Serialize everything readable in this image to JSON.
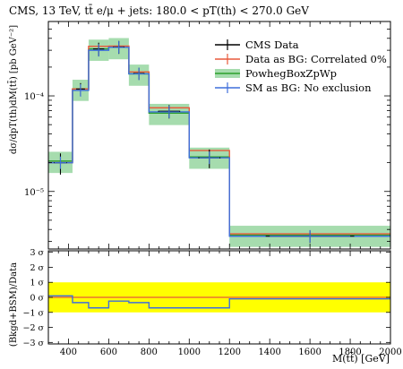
{
  "chart_data": [
    {
      "type": "line",
      "title": "CMS, 13 TeV, tt̄ e/μ + jets: 180.0 < pT(th) < 270.0 GeV",
      "ylabel": "dσ/dpT(th)dM(tt̄) [pb GeV⁻²]",
      "yscale": "log",
      "ylim": [
        2.5e-06,
        0.0006
      ],
      "xlim": [
        300,
        2000
      ],
      "yticks": [
        {
          "value": 1e-05,
          "label": "10⁻⁵"
        },
        {
          "value": 0.0001,
          "label": "10⁻⁴"
        }
      ],
      "bin_edges": [
        300,
        420,
        500,
        600,
        700,
        800,
        1000,
        1200,
        2000
      ],
      "legend": {
        "position": "top-right"
      },
      "series": [
        {
          "name": "CMS Data",
          "color": "#000000",
          "x": [
            360,
            460,
            550,
            650,
            750,
            900,
            1100,
            1600
          ],
          "y": [
            2e-05,
            0.000118,
            0.00031,
            0.000325,
            0.000172,
            6.9e-05,
            2.25e-05,
            3.4e-06
          ],
          "yerr": [
            5e-06,
            1.8e-05,
            5e-05,
            5e-05,
            2.5e-05,
            1.1e-05,
            5e-06,
            5e-07
          ]
        },
        {
          "name": "Data as BG: Correlated 0%",
          "color": "#e8593b",
          "y": [
            2e-05,
            0.000118,
            0.00033,
            0.000332,
            0.000178,
            7.5e-05,
            2.68e-05,
            3.6e-06
          ]
        },
        {
          "name": "PowhegBoxZpWp",
          "color": "#2ca02c",
          "band_color": "#a6dcae",
          "y": [
            2.08e-05,
            0.000118,
            0.00031,
            0.000322,
            0.00017,
            6.6e-05,
            2.3e-05,
            3.5e-06
          ],
          "band_frac": 0.25
        },
        {
          "name": "SM as BG: No exclusion",
          "color": "#3f6fdc",
          "y": [
            2e-05,
            0.000114,
            0.0003,
            0.000322,
            0.00017,
            6.8e-05,
            2.25e-05,
            3.4e-06
          ]
        }
      ]
    },
    {
      "type": "line",
      "ylabel": "(Bkgd+BSM)/Data",
      "xlabel": "M(tt̄) [GeV]",
      "ylim": [
        -3.1,
        3.1
      ],
      "ytick_labels": [
        "3 σ",
        "2 σ",
        "1 σ",
        "0 σ",
        "−1 σ",
        "−2 σ",
        "−3 σ"
      ],
      "xticks": [
        400,
        600,
        800,
        1000,
        1200,
        1400,
        1600,
        1800,
        2000
      ],
      "band": {
        "range": [
          -1,
          1
        ],
        "color": "#ffff00"
      },
      "bin_edges": [
        300,
        420,
        500,
        600,
        700,
        800,
        1000,
        1200,
        2000
      ],
      "series": [
        {
          "name": "Data as BG: Correlated 0%",
          "color": "#e8593b",
          "values": [
            0,
            0,
            0,
            0,
            0,
            0,
            0,
            0
          ]
        },
        {
          "name": "SM as BG: No exclusion",
          "color": "#3f6fdc",
          "values": [
            0.1,
            -0.35,
            -0.7,
            -0.25,
            -0.35,
            -0.7,
            -0.7,
            -0.1
          ]
        }
      ]
    }
  ]
}
